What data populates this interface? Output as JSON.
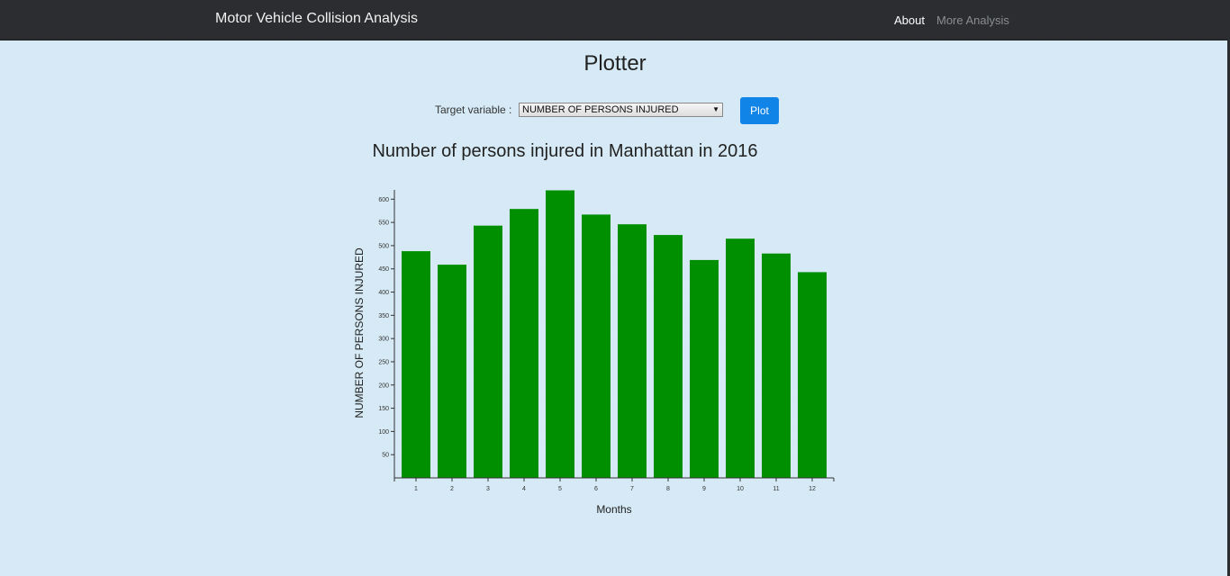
{
  "navbar": {
    "brand": "Motor Vehicle Collision Analysis",
    "links": [
      {
        "label": "About"
      },
      {
        "label": "More Analysis"
      }
    ]
  },
  "page_title": "Plotter",
  "controls": {
    "target_label": "Target variable :",
    "selected_value": "NUMBER OF PERSONS INJURED",
    "plot_label": "Plot"
  },
  "colors": {
    "bar": "#008f00",
    "button": "#1184e8",
    "navbar": "#2b2d30"
  },
  "chart_data": {
    "type": "bar",
    "title": "Number of persons injured in Manhattan in 2016",
    "xlabel": "Months",
    "ylabel": "NUMBER OF PERSONS INJURED",
    "categories": [
      "1",
      "2",
      "3",
      "4",
      "5",
      "6",
      "7",
      "8",
      "9",
      "10",
      "11",
      "12"
    ],
    "values": [
      488,
      459,
      543,
      579,
      619,
      567,
      546,
      523,
      469,
      515,
      483,
      443
    ],
    "yticks": [
      "50",
      "100",
      "150",
      "200",
      "250",
      "300",
      "350",
      "400",
      "450",
      "500",
      "550",
      "600"
    ],
    "ylim": [
      0,
      620
    ],
    "grid": false,
    "legend": "none"
  }
}
